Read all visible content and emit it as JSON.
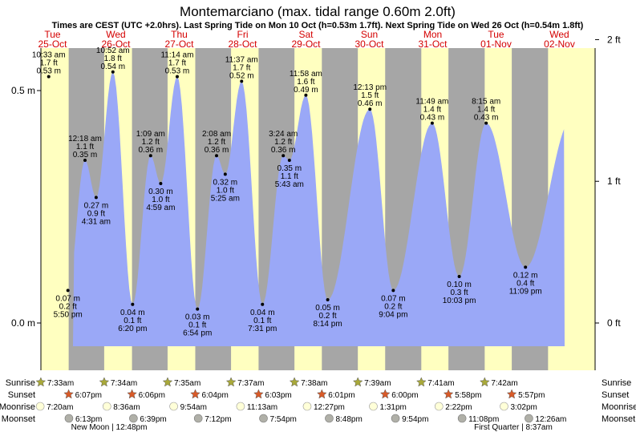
{
  "chart_data": {
    "type": "area",
    "title": "Montemarciano (max. tidal range 0.60m 2.0ft)",
    "subtitle": "Times are CEST (UTC +2.0hrs). Last Spring Tide on Mon 10 Oct (h=0.53m 1.7ft). Next Spring Tide on Wed 26 Oct (h=0.54m 1.8ft)",
    "ylim": [
      -0.1,
      0.6
    ],
    "left_ticks": [
      {
        "value": 0.5,
        "label": "0.5 m"
      },
      {
        "value": 0.0,
        "label": "0.0 m"
      }
    ],
    "right_ticks": [
      {
        "value": 0.6096,
        "label": "2 ft"
      },
      {
        "value": 0.3048,
        "label": "1 ft"
      },
      {
        "value": 0.0,
        "label": "0 ft"
      }
    ],
    "days": [
      {
        "weekday": "Tue",
        "date": "25-Oct"
      },
      {
        "weekday": "Wed",
        "date": "26-Oct"
      },
      {
        "weekday": "Thu",
        "date": "27-Oct"
      },
      {
        "weekday": "Fri",
        "date": "28-Oct"
      },
      {
        "weekday": "Sat",
        "date": "29-Oct"
      },
      {
        "weekday": "Sun",
        "date": "30-Oct"
      },
      {
        "weekday": "Mon",
        "date": "31-Oct"
      },
      {
        "weekday": "Tue",
        "date": "01-Nov"
      },
      {
        "weekday": "Wed",
        "date": "02-Nov"
      }
    ],
    "tides": [
      {
        "day": 0,
        "hour": 10.55,
        "height": 0.53,
        "time": "10:33 am",
        "ft": "1.7 ft",
        "m": "0.53 m",
        "type": "high"
      },
      {
        "day": 0,
        "hour": 17.83,
        "height": 0.07,
        "time": "5:50 pm",
        "ft": "0.2 ft",
        "m": "0.07 m",
        "type": "low"
      },
      {
        "day": 0,
        "hour": 24.3,
        "height": 0.35,
        "time": "12:18 am",
        "ft": "1.1 ft",
        "m": "0.35 m",
        "type": "high"
      },
      {
        "day": 1,
        "hour": 4.52,
        "height": 0.27,
        "time": "4:31 am",
        "ft": "0.9 ft",
        "m": "0.27 m",
        "type": "low"
      },
      {
        "day": 1,
        "hour": 10.87,
        "height": 0.54,
        "time": "10:52 am",
        "ft": "1.8 ft",
        "m": "0.54 m",
        "type": "high"
      },
      {
        "day": 1,
        "hour": 18.33,
        "height": 0.04,
        "time": "6:20 pm",
        "ft": "0.1 ft",
        "m": "0.04 m",
        "type": "low"
      },
      {
        "day": 2,
        "hour": 1.15,
        "height": 0.36,
        "time": "1:09 am",
        "ft": "1.2 ft",
        "m": "0.36 m",
        "type": "high"
      },
      {
        "day": 2,
        "hour": 4.98,
        "height": 0.3,
        "time": "4:59 am",
        "ft": "1.0 ft",
        "m": "0.30 m",
        "type": "low"
      },
      {
        "day": 2,
        "hour": 11.23,
        "height": 0.53,
        "time": "11:14 am",
        "ft": "1.7 ft",
        "m": "0.53 m",
        "type": "high"
      },
      {
        "day": 2,
        "hour": 18.9,
        "height": 0.03,
        "time": "6:54 pm",
        "ft": "0.1 ft",
        "m": "0.03 m",
        "type": "low"
      },
      {
        "day": 3,
        "hour": 2.13,
        "height": 0.36,
        "time": "2:08 am",
        "ft": "1.2 ft",
        "m": "0.36 m",
        "type": "high"
      },
      {
        "day": 3,
        "hour": 5.42,
        "height": 0.32,
        "time": "5:25 am",
        "ft": "1.0 ft",
        "m": "0.32 m",
        "type": "low"
      },
      {
        "day": 3,
        "hour": 11.62,
        "height": 0.52,
        "time": "11:37 am",
        "ft": "1.7 ft",
        "m": "0.52 m",
        "type": "high"
      },
      {
        "day": 3,
        "hour": 19.52,
        "height": 0.04,
        "time": "7:31 pm",
        "ft": "0.1 ft",
        "m": "0.04 m",
        "type": "low"
      },
      {
        "day": 4,
        "hour": 3.4,
        "height": 0.36,
        "time": "3:24 am",
        "ft": "1.2 ft",
        "m": "0.36 m",
        "type": "high"
      },
      {
        "day": 4,
        "hour": 5.72,
        "height": 0.35,
        "time": "5:43 am",
        "ft": "1.1 ft",
        "m": "0.35 m",
        "type": "low"
      },
      {
        "day": 4,
        "hour": 11.97,
        "height": 0.49,
        "time": "11:58 am",
        "ft": "1.6 ft",
        "m": "0.49 m",
        "type": "high"
      },
      {
        "day": 4,
        "hour": 20.23,
        "height": 0.05,
        "time": "8:14 pm",
        "ft": "0.2 ft",
        "m": "0.05 m",
        "type": "low"
      },
      {
        "day": 5,
        "hour": 12.22,
        "height": 0.46,
        "time": "12:13 pm",
        "ft": "1.5 ft",
        "m": "0.46 m",
        "type": "high"
      },
      {
        "day": 5,
        "hour": 21.07,
        "height": 0.07,
        "time": "9:04 pm",
        "ft": "0.2 ft",
        "m": "0.07 m",
        "type": "low"
      },
      {
        "day": 6,
        "hour": 11.82,
        "height": 0.43,
        "time": "11:49 am",
        "ft": "1.4 ft",
        "m": "0.43 m",
        "type": "high"
      },
      {
        "day": 6,
        "hour": 22.05,
        "height": 0.1,
        "time": "10:03 pm",
        "ft": "0.3 ft",
        "m": "0.10 m",
        "type": "low"
      },
      {
        "day": 7,
        "hour": 8.25,
        "height": 0.43,
        "time": "8:15 am",
        "ft": "1.4 ft",
        "m": "0.43 m",
        "type": "high"
      },
      {
        "day": 7,
        "hour": 23.15,
        "height": 0.12,
        "time": "11:09 pm",
        "ft": "0.4 ft",
        "m": "0.12 m",
        "type": "low"
      }
    ],
    "astro_labels": [
      "Sunrise",
      "Sunset",
      "Moonrise",
      "Moonset"
    ],
    "astro": [
      {
        "sunrise": "7:33am",
        "sunset": "6:07pm",
        "moonrise": "7:20am",
        "moonset": "6:13pm"
      },
      {
        "sunrise": "7:34am",
        "sunset": "6:06pm",
        "moonrise": "8:36am",
        "moonset": "6:39pm"
      },
      {
        "sunrise": "7:35am",
        "sunset": "6:04pm",
        "moonrise": "9:54am",
        "moonset": "7:12pm"
      },
      {
        "sunrise": "7:37am",
        "sunset": "6:03pm",
        "moonrise": "11:13am",
        "moonset": "7:54pm"
      },
      {
        "sunrise": "7:38am",
        "sunset": "6:01pm",
        "moonrise": "12:27pm",
        "moonset": "8:48pm"
      },
      {
        "sunrise": "7:39am",
        "sunset": "6:00pm",
        "moonrise": "1:31pm",
        "moonset": "9:54pm"
      },
      {
        "sunrise": "7:41am",
        "sunset": "5:58pm",
        "moonrise": "2:22pm",
        "moonset": "11:08pm"
      },
      {
        "sunrise": "7:42am",
        "sunset": "5:57pm",
        "moonrise": "3:02pm",
        "moonset": "12:26am"
      }
    ],
    "moon_phases": [
      {
        "label": "New Moon | 12:48pm",
        "day": 0
      },
      {
        "label": "First Quarter | 8:37am",
        "day": 6
      }
    ],
    "colors": {
      "night": "#a6a6a6",
      "day": "#ffffc0",
      "water": "#9aa8f7",
      "date_text": "#d40000",
      "sunrise_star": "#a9a93a",
      "sunset_star": "#d85a28",
      "moonrise": "#ffffd8",
      "moonset": "#b0b0a8"
    }
  }
}
